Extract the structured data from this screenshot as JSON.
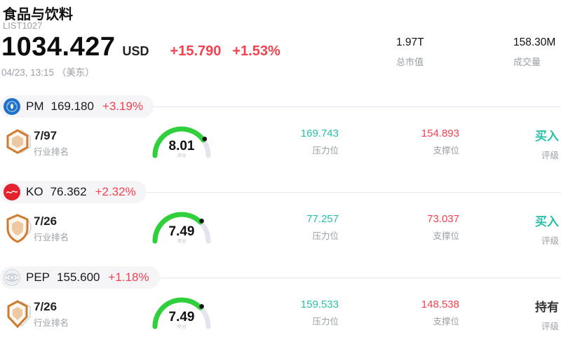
{
  "header": {
    "title": "食品与饮料",
    "subtitle": "LIST1027",
    "price": "1034.427",
    "currency": "USD",
    "change": "+15.790",
    "change_pct": "+1.53%",
    "timestamp": "04/23, 13:15 （美东）",
    "stats": [
      {
        "value": "1.97T",
        "label": "总市值"
      },
      {
        "value": "158.30M",
        "label": "成交量"
      }
    ]
  },
  "labels": {
    "rank": "行业排名",
    "score": "评分",
    "pressure": "压力位",
    "support": "支撑位",
    "rating": "评级"
  },
  "colors": {
    "up_red": "#f4414f",
    "teal": "#28bfa8",
    "gauge_green": "#2fd03c",
    "gauge_track": "#e4e4ec",
    "muted_gray": "#9aa0a6",
    "rating_hold_dark": "#333333"
  },
  "icons": {
    "pm_logo": "pm-blue-crest-logo",
    "ko_logo": "coca-cola-red-logo",
    "pep_logo": "pepsico-gray-globe-logo",
    "badge": "industry-rank-badge"
  },
  "stocks": [
    {
      "ticker": "PM",
      "price": "169.180",
      "change_pct": "+3.19%",
      "rank": "7/97",
      "score": "8.01",
      "score_max": 10,
      "pressure": "169.743",
      "support": "154.893",
      "rating": "买入",
      "rating_color": "#28bfa8"
    },
    {
      "ticker": "KO",
      "price": "76.362",
      "change_pct": "+2.32%",
      "rank": "7/26",
      "score": "7.49",
      "score_max": 10,
      "pressure": "77.257",
      "support": "73.037",
      "rating": "买入",
      "rating_color": "#28bfa8"
    },
    {
      "ticker": "PEP",
      "price": "155.600",
      "change_pct": "+1.18%",
      "rank": "7/26",
      "score": "7.49",
      "score_max": 10,
      "pressure": "159.533",
      "support": "148.538",
      "rating": "持有",
      "rating_color": "#333333"
    }
  ]
}
